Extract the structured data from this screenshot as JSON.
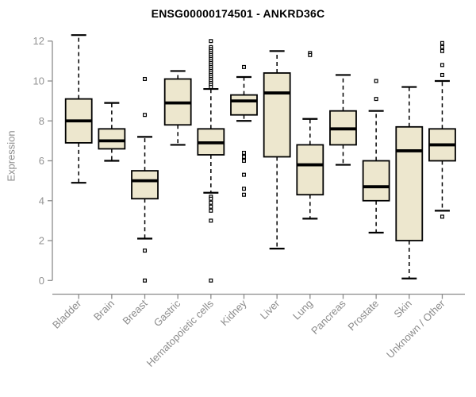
{
  "styles": {
    "background": "#ffffff",
    "box_fill": "#ede7ce",
    "box_stroke": "#000000",
    "median_color": "#000000",
    "whisker_color": "#000000",
    "axis_color": "#8c8c8c",
    "tick_label_color": "#929292",
    "title_color": "#000000"
  },
  "chart_data": {
    "type": "boxplot",
    "title": "ENSG00000174501 - ANKRD36C",
    "xlabel": "",
    "ylabel": "Expression",
    "ylim": [
      0,
      12
    ],
    "yticks": [
      0,
      2,
      4,
      6,
      8,
      10,
      12
    ],
    "grid": false,
    "legend": null,
    "categories": [
      "Bladder",
      "Brain",
      "Breast",
      "Gastric",
      "Hematopoietic cells",
      "Kidney",
      "Liver",
      "Lung",
      "Pancreas",
      "Prostate",
      "Skin",
      "Unknown / Other"
    ],
    "boxes": [
      {
        "category": "Bladder",
        "whisker_low": 4.9,
        "q1": 6.9,
        "median": 8.0,
        "q3": 9.1,
        "whisker_high": 12.3,
        "outliers": []
      },
      {
        "category": "Brain",
        "whisker_low": 6.0,
        "q1": 6.6,
        "median": 7.0,
        "q3": 7.6,
        "whisker_high": 8.9,
        "outliers": []
      },
      {
        "category": "Breast",
        "whisker_low": 2.1,
        "q1": 4.1,
        "median": 5.0,
        "q3": 5.5,
        "whisker_high": 7.2,
        "outliers": [
          10.1,
          8.3,
          1.5,
          0
        ]
      },
      {
        "category": "Gastric",
        "whisker_low": 6.8,
        "q1": 7.8,
        "median": 8.9,
        "q3": 10.1,
        "whisker_high": 10.5,
        "outliers": []
      },
      {
        "category": "Hematopoietic cells",
        "whisker_low": 4.4,
        "q1": 6.3,
        "median": 6.9,
        "q3": 7.6,
        "whisker_high": 9.6,
        "outliers": [
          12.0,
          11.7,
          11.6,
          11.5,
          11.4,
          11.3,
          11.2,
          11.1,
          11.0,
          10.9,
          10.8,
          10.7,
          10.6,
          10.5,
          10.4,
          10.3,
          10.2,
          10.1,
          10.0,
          9.9,
          9.8,
          9.7,
          4.2,
          4.1,
          3.9,
          3.7,
          3.5,
          3.0,
          0
        ]
      },
      {
        "category": "Kidney",
        "whisker_low": 8.0,
        "q1": 8.3,
        "median": 9.0,
        "q3": 9.3,
        "whisker_high": 10.2,
        "outliers": [
          10.7,
          6.4,
          6.2,
          6.0,
          5.3,
          4.6,
          4.3
        ]
      },
      {
        "category": "Liver",
        "whisker_low": 1.6,
        "q1": 6.2,
        "median": 9.4,
        "q3": 10.4,
        "whisker_high": 11.5,
        "outliers": []
      },
      {
        "category": "Lung",
        "whisker_low": 3.1,
        "q1": 4.3,
        "median": 5.8,
        "q3": 6.8,
        "whisker_high": 8.1,
        "outliers": [
          11.4,
          11.3
        ]
      },
      {
        "category": "Pancreas",
        "whisker_low": 5.8,
        "q1": 6.8,
        "median": 7.6,
        "q3": 8.5,
        "whisker_high": 10.3,
        "outliers": []
      },
      {
        "category": "Prostate",
        "whisker_low": 2.4,
        "q1": 4.0,
        "median": 4.7,
        "q3": 6.0,
        "whisker_high": 8.5,
        "outliers": [
          10.0,
          9.1
        ]
      },
      {
        "category": "Skin",
        "whisker_low": 0.1,
        "q1": 2.0,
        "median": 6.5,
        "q3": 7.7,
        "whisker_high": 9.7,
        "outliers": []
      },
      {
        "category": "Unknown / Other",
        "whisker_low": 3.5,
        "q1": 6.0,
        "median": 6.8,
        "q3": 7.6,
        "whisker_high": 10.0,
        "outliers": [
          11.9,
          11.7,
          11.5,
          10.8,
          10.3,
          3.2
        ]
      }
    ]
  }
}
